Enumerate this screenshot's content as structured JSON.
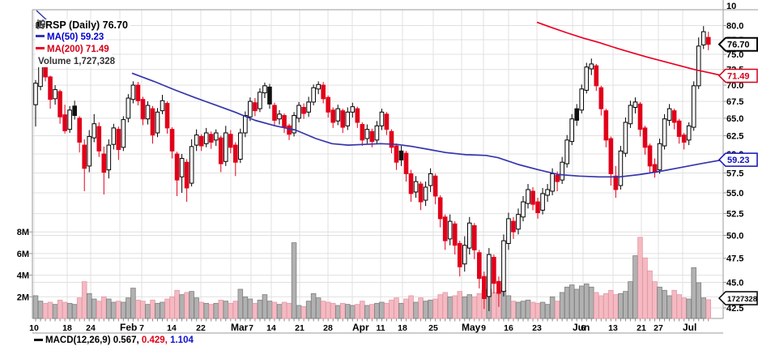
{
  "legend": {
    "title": "CRSP (Daily) 76.70",
    "ma50": "MA(50) 59.23",
    "ma200": "MA(200) 71.49",
    "volume": "Volume 1,727,328"
  },
  "footer": {
    "text": "MACD(12,26,9) 0.567,",
    "value2": "0.429,",
    "value3": "1.104"
  },
  "colors": {
    "background": "#ffffff",
    "grid": "#e0e0e0",
    "axis_border": "#9a9a9a",
    "axis_text": "#000000",
    "candle_up_fill": "#ffffff",
    "candle_up_stroke": "#000000",
    "candle_down": "#e10019",
    "candle_black": "#111111",
    "ma50_line": "#3535ad",
    "ma200_line": "#ea0024",
    "volume_up_fill": "#b1b1b1",
    "volume_up_stroke": "#7f7f7f",
    "volume_down_fill": "#f5b9c2",
    "volume_down_stroke": "#e09aa6",
    "tag_last": "#000000",
    "tag_ma200": "#d40018",
    "tag_ma50": "#1111bb",
    "tag_volume": "#000000"
  },
  "chart_data": {
    "type": "candlestick",
    "title": "CRSP (Daily)",
    "symbol": "CRSP",
    "timeframe": "Daily",
    "last_price": 76.7,
    "ma50_value": 59.23,
    "ma200_value": 71.49,
    "current_volume": 1727328,
    "scale": "log",
    "ylim": [
      42.5,
      80.0
    ],
    "volume_ylim_millions": [
      0,
      8
    ],
    "grid": true,
    "y_top_label": "10",
    "y_ticks": [
      [
        80.0,
        "80.0"
      ],
      [
        77.5,
        "77.5"
      ],
      [
        75.0,
        "75.0"
      ],
      [
        72.5,
        "72.5"
      ],
      [
        70.0,
        "70.0"
      ],
      [
        67.5,
        "67.5"
      ],
      [
        65.0,
        "65.0"
      ],
      [
        62.5,
        "62.5"
      ],
      [
        60.0,
        "60.0"
      ],
      [
        57.5,
        "57.5"
      ],
      [
        55.0,
        "55.0"
      ],
      [
        52.5,
        "52.5"
      ],
      [
        50.0,
        "50.0"
      ],
      [
        47.5,
        "47.5"
      ],
      [
        45.0,
        "45.0"
      ],
      [
        42.5,
        "42.5"
      ]
    ],
    "volume_ticks": [
      [
        8,
        "8M"
      ],
      [
        6,
        "6M"
      ],
      [
        4,
        "4M"
      ],
      [
        2,
        "2M"
      ]
    ],
    "x_ticks": [
      [
        42,
        "10",
        0
      ],
      [
        83,
        "18",
        0
      ],
      [
        112,
        "24",
        0
      ],
      [
        148,
        "Feb",
        1
      ],
      [
        175,
        "7",
        0
      ],
      [
        212,
        "14",
        0
      ],
      [
        248,
        "22",
        0
      ],
      [
        285,
        "Mar",
        1
      ],
      [
        310,
        "7",
        0
      ],
      [
        335,
        "14",
        0
      ],
      [
        370,
        "21",
        0
      ],
      [
        405,
        "28",
        0
      ],
      [
        435,
        "Apr",
        1
      ],
      [
        470,
        "11",
        0
      ],
      [
        497,
        "18",
        0
      ],
      [
        535,
        "25",
        0
      ],
      [
        570,
        "May",
        1
      ],
      [
        597,
        "9",
        0
      ],
      [
        628,
        "16",
        0
      ],
      [
        663,
        "23",
        0
      ],
      [
        707,
        "Jun",
        1
      ],
      [
        720,
        "6",
        0
      ],
      [
        757,
        "13",
        0
      ],
      [
        792,
        "21",
        0
      ],
      [
        813,
        "27",
        0
      ],
      [
        843,
        "Jul",
        1
      ]
    ],
    "price_tags": [
      {
        "text": "76.70",
        "price": 76.7,
        "color": "#000000",
        "fs": 11,
        "sw": 2
      },
      {
        "text": "71.49",
        "price": 71.49,
        "color": "#d40018",
        "fs": 11,
        "sw": 1.5
      },
      {
        "text": "59.23",
        "price": 59.23,
        "color": "#1111bb",
        "fs": 11,
        "sw": 1.5
      },
      {
        "text": "1727328",
        "y": 368,
        "color": "#000000",
        "fs": 9.5,
        "sw": 1.5
      }
    ],
    "candles": [
      [
        67.0,
        70.8,
        63.8,
        70.3,
        2.1
      ],
      [
        69.8,
        75.0,
        69.2,
        73.8,
        1.6
      ],
      [
        73.8,
        74.3,
        70.6,
        71.3,
        1.4
      ],
      [
        71.3,
        71.5,
        66.4,
        67.8,
        1.5
      ],
      [
        67.9,
        70.0,
        67.0,
        69.3,
        1.3
      ],
      [
        69.0,
        69.3,
        64.2,
        65.2,
        1.7
      ],
      [
        65.5,
        67.0,
        62.8,
        63.2,
        1.5
      ],
      [
        63.4,
        66.8,
        62.9,
        66.2,
        1.4
      ],
      [
        66.8,
        67.6,
        64.8,
        65.4,
        1.3
      ],
      [
        65.0,
        65.3,
        60.2,
        61.6,
        1.9
      ],
      [
        61.2,
        62.0,
        55.2,
        58.1,
        3.4
      ],
      [
        58.4,
        63.3,
        57.6,
        62.4,
        2.3
      ],
      [
        62.2,
        65.6,
        61.6,
        64.2,
        1.8
      ],
      [
        63.8,
        64.4,
        59.6,
        60.4,
        1.6
      ],
      [
        60.0,
        61.0,
        54.8,
        57.6,
        2.0
      ],
      [
        57.9,
        62.0,
        56.8,
        61.2,
        1.8
      ],
      [
        61.3,
        64.2,
        60.6,
        63.6,
        1.5
      ],
      [
        63.4,
        63.8,
        59.2,
        60.6,
        1.6
      ],
      [
        60.9,
        65.3,
        60.4,
        64.8,
        1.5
      ],
      [
        65.0,
        68.6,
        64.4,
        68.0,
        1.9
      ],
      [
        67.8,
        70.6,
        67.2,
        70.0,
        2.8
      ],
      [
        70.0,
        70.5,
        66.9,
        67.6,
        1.7
      ],
      [
        67.8,
        68.2,
        64.0,
        64.9,
        1.6
      ],
      [
        64.9,
        67.5,
        64.1,
        66.9,
        1.3
      ],
      [
        66.4,
        66.8,
        61.4,
        62.6,
        1.7
      ],
      [
        62.9,
        66.5,
        62.3,
        65.9,
        1.4
      ],
      [
        66.1,
        68.5,
        65.6,
        67.6,
        1.5
      ],
      [
        67.2,
        67.5,
        62.8,
        63.6,
        1.8
      ],
      [
        63.4,
        63.7,
        59.4,
        60.4,
        2.0
      ],
      [
        60.0,
        60.3,
        54.6,
        56.6,
        2.6
      ],
      [
        57.0,
        60.0,
        55.0,
        59.4,
        2.2
      ],
      [
        58.9,
        59.3,
        53.9,
        55.6,
        2.4
      ],
      [
        56.2,
        62.0,
        55.8,
        61.0,
        2.5
      ],
      [
        61.2,
        63.4,
        60.4,
        62.6,
        1.9
      ],
      [
        62.4,
        62.7,
        60.4,
        61.1,
        1.5
      ],
      [
        61.4,
        63.6,
        60.9,
        62.9,
        1.4
      ],
      [
        62.7,
        63.1,
        60.7,
        61.6,
        1.3
      ],
      [
        61.9,
        63.4,
        61.1,
        62.9,
        1.4
      ],
      [
        62.2,
        62.5,
        57.6,
        58.7,
        1.7
      ],
      [
        59.0,
        63.9,
        58.4,
        62.9,
        1.6
      ],
      [
        62.7,
        63.3,
        60.1,
        60.9,
        1.4
      ],
      [
        61.2,
        61.6,
        57.1,
        58.9,
        1.6
      ],
      [
        59.3,
        63.5,
        58.8,
        62.9,
        2.7
      ],
      [
        62.9,
        66.0,
        62.3,
        65.4,
        2.0
      ],
      [
        65.2,
        68.1,
        64.6,
        67.5,
        1.8
      ],
      [
        67.3,
        68.0,
        65.3,
        66.1,
        1.4
      ],
      [
        66.4,
        69.5,
        65.9,
        68.9,
        1.7
      ],
      [
        68.8,
        70.4,
        68.0,
        69.9,
        2.2
      ],
      [
        69.7,
        70.2,
        66.4,
        67.1,
        1.6
      ],
      [
        66.9,
        67.3,
        63.9,
        64.7,
        1.5
      ],
      [
        64.9,
        66.2,
        64.1,
        65.6,
        1.3
      ],
      [
        65.4,
        65.7,
        62.9,
        63.7,
        1.5
      ],
      [
        63.9,
        64.2,
        61.9,
        62.7,
        1.4
      ],
      [
        62.9,
        65.9,
        62.4,
        65.4,
        7.0
      ],
      [
        65.0,
        67.4,
        64.4,
        66.9,
        1.2
      ],
      [
        66.6,
        67.2,
        64.9,
        65.7,
        1.1
      ],
      [
        65.9,
        68.2,
        65.2,
        67.4,
        1.6
      ],
      [
        67.4,
        70.1,
        66.9,
        69.6,
        2.3
      ],
      [
        69.4,
        70.6,
        68.6,
        70.1,
        1.9
      ],
      [
        70.0,
        70.5,
        67.2,
        67.9,
        1.6
      ],
      [
        68.1,
        68.4,
        65.1,
        65.9,
        1.5
      ],
      [
        66.2,
        66.6,
        63.6,
        64.4,
        1.4
      ],
      [
        64.6,
        67.0,
        64.0,
        66.4,
        1.2
      ],
      [
        66.1,
        66.4,
        62.9,
        63.7,
        1.4
      ],
      [
        63.9,
        66.6,
        63.3,
        65.9,
        1.3
      ],
      [
        65.9,
        67.3,
        65.1,
        66.7,
        1.2
      ],
      [
        66.4,
        66.7,
        63.6,
        64.4,
        1.3
      ],
      [
        64.1,
        64.4,
        61.1,
        61.9,
        1.6
      ],
      [
        62.1,
        64.1,
        61.4,
        63.4,
        1.2
      ],
      [
        63.1,
        63.5,
        60.9,
        61.7,
        1.3
      ],
      [
        61.9,
        64.6,
        61.3,
        63.9,
        1.4
      ],
      [
        63.9,
        66.4,
        63.3,
        65.9,
        1.5
      ],
      [
        65.6,
        65.9,
        62.6,
        63.4,
        1.4
      ],
      [
        63.1,
        63.4,
        60.1,
        60.9,
        1.7
      ],
      [
        61.1,
        61.4,
        57.9,
        58.9,
        1.9
      ],
      [
        59.2,
        61.1,
        58.4,
        60.4,
        1.4
      ],
      [
        60.1,
        60.4,
        56.4,
        57.4,
        1.8
      ],
      [
        57.4,
        57.9,
        53.9,
        54.9,
        2.1
      ],
      [
        55.1,
        57.1,
        54.4,
        56.4,
        1.5
      ],
      [
        56.1,
        56.4,
        52.9,
        53.9,
        1.9
      ],
      [
        54.1,
        56.4,
        53.4,
        55.7,
        1.6
      ],
      [
        55.9,
        58.1,
        55.1,
        57.4,
        1.7
      ],
      [
        57.1,
        57.4,
        53.6,
        54.6,
        1.8
      ],
      [
        54.4,
        54.7,
        50.9,
        51.9,
        2.2
      ],
      [
        52.1,
        52.4,
        48.4,
        49.4,
        2.4
      ],
      [
        49.6,
        52.4,
        48.9,
        51.6,
        2.0
      ],
      [
        51.3,
        51.6,
        47.9,
        48.9,
        2.1
      ],
      [
        49.1,
        49.4,
        45.6,
        46.6,
        2.5
      ],
      [
        46.9,
        49.9,
        46.1,
        48.9,
        2.0
      ],
      [
        48.6,
        52.1,
        47.9,
        51.4,
        2.2
      ],
      [
        51.1,
        51.4,
        47.4,
        48.4,
        2.0
      ],
      [
        48.1,
        48.4,
        44.4,
        45.4,
        2.3
      ],
      [
        45.6,
        46.1,
        42.4,
        43.4,
        2.6
      ],
      [
        43.6,
        48.6,
        42.2,
        47.9,
        2.7
      ],
      [
        47.6,
        47.9,
        43.9,
        44.9,
        2.4
      ],
      [
        45.1,
        45.6,
        42.6,
        43.9,
        2.2
      ],
      [
        44.1,
        50.1,
        43.6,
        49.4,
        2.6
      ],
      [
        49.1,
        52.6,
        48.4,
        51.9,
        2.1
      ],
      [
        51.6,
        52.1,
        49.6,
        50.4,
        1.6
      ],
      [
        50.7,
        53.1,
        50.1,
        52.4,
        1.5
      ],
      [
        52.1,
        54.6,
        51.6,
        53.9,
        1.6
      ],
      [
        53.7,
        56.1,
        53.1,
        55.4,
        1.7
      ],
      [
        55.2,
        55.7,
        52.9,
        53.6,
        1.5
      ],
      [
        53.9,
        54.4,
        51.9,
        52.6,
        1.4
      ],
      [
        52.9,
        55.6,
        52.4,
        54.9,
        1.5
      ],
      [
        54.7,
        56.1,
        53.9,
        55.4,
        1.3
      ],
      [
        55.2,
        58.1,
        54.7,
        57.4,
        2.0
      ],
      [
        57.2,
        57.7,
        55.2,
        56.4,
        1.6
      ],
      [
        56.6,
        59.6,
        56.1,
        58.9,
        2.4
      ],
      [
        58.7,
        62.6,
        58.2,
        61.9,
        2.9
      ],
      [
        61.7,
        65.6,
        61.2,
        64.9,
        3.1
      ],
      [
        64.7,
        67.1,
        63.9,
        66.4,
        2.7
      ],
      [
        66.2,
        70.1,
        65.7,
        69.4,
        3.0
      ],
      [
        69.2,
        73.6,
        68.7,
        72.9,
        3.2
      ],
      [
        72.6,
        74.3,
        71.6,
        73.4,
        2.9
      ],
      [
        73.1,
        73.4,
        69.1,
        69.9,
        2.4
      ],
      [
        69.6,
        69.9,
        65.4,
        66.4,
        2.1
      ],
      [
        66.1,
        66.4,
        60.9,
        61.9,
        2.3
      ],
      [
        62.1,
        62.4,
        55.9,
        57.4,
        2.6
      ],
      [
        57.1,
        58.4,
        54.4,
        55.4,
        2.2
      ],
      [
        55.9,
        61.1,
        55.4,
        60.4,
        2.3
      ],
      [
        60.1,
        65.1,
        59.6,
        64.4,
        2.5
      ],
      [
        64.2,
        67.6,
        63.6,
        66.9,
        3.4
      ],
      [
        66.6,
        68.1,
        65.7,
        67.4,
        5.8
      ],
      [
        67.1,
        67.4,
        62.4,
        63.4,
        7.5
      ],
      [
        63.6,
        63.9,
        59.9,
        60.9,
        5.6
      ],
      [
        61.1,
        61.4,
        57.4,
        58.4,
        4.4
      ],
      [
        58.6,
        59.4,
        56.9,
        57.6,
        3.4
      ],
      [
        57.9,
        62.1,
        57.4,
        61.4,
        2.9
      ],
      [
        61.1,
        65.6,
        60.6,
        64.9,
        2.6
      ],
      [
        64.7,
        67.1,
        63.9,
        66.4,
        2.1
      ],
      [
        66.1,
        66.4,
        63.4,
        64.4,
        2.6
      ],
      [
        64.6,
        64.9,
        61.4,
        62.4,
        2.2
      ],
      [
        62.6,
        62.9,
        60.6,
        61.6,
        1.9
      ],
      [
        61.9,
        64.4,
        61.2,
        63.9,
        1.8
      ],
      [
        63.7,
        70.6,
        63.2,
        69.9,
        4.7
      ],
      [
        69.9,
        77.9,
        69.4,
        76.4,
        3.3
      ],
      [
        76.6,
        79.9,
        75.9,
        78.9,
        1.9
      ],
      [
        77.9,
        78.9,
        75.7,
        76.7,
        1.73
      ]
    ],
    "black_candles": [
      8,
      48,
      75,
      111
    ],
    "ma50_points": [
      [
        163,
        71.9
      ],
      [
        190,
        70.6
      ],
      [
        215,
        69.3
      ],
      [
        240,
        68.1
      ],
      [
        265,
        67.0
      ],
      [
        290,
        65.9
      ],
      [
        315,
        64.7
      ],
      [
        340,
        63.9
      ],
      [
        365,
        63.3
      ],
      [
        390,
        62.1
      ],
      [
        410,
        61.4
      ],
      [
        430,
        61.2
      ],
      [
        450,
        61.3
      ],
      [
        470,
        61.4
      ],
      [
        490,
        61.3
      ],
      [
        510,
        61.0
      ],
      [
        530,
        60.6
      ],
      [
        550,
        60.2
      ],
      [
        575,
        59.9
      ],
      [
        600,
        59.8
      ],
      [
        615,
        59.5
      ],
      [
        640,
        58.6
      ],
      [
        665,
        57.9
      ],
      [
        690,
        57.3
      ],
      [
        715,
        57.1
      ],
      [
        740,
        57.0
      ],
      [
        765,
        57.0
      ],
      [
        790,
        57.3
      ],
      [
        815,
        57.7
      ],
      [
        840,
        58.2
      ],
      [
        865,
        58.7
      ],
      [
        893,
        59.23
      ]
    ],
    "ma200_points": [
      [
        663,
        80.6
      ],
      [
        680,
        79.7
      ],
      [
        700,
        78.7
      ],
      [
        720,
        77.8
      ],
      [
        740,
        77.0
      ],
      [
        760,
        76.1
      ],
      [
        780,
        75.3
      ],
      [
        800,
        74.5
      ],
      [
        820,
        73.8
      ],
      [
        840,
        73.1
      ],
      [
        857,
        72.5
      ],
      [
        875,
        72.0
      ],
      [
        893,
        71.49
      ]
    ]
  }
}
